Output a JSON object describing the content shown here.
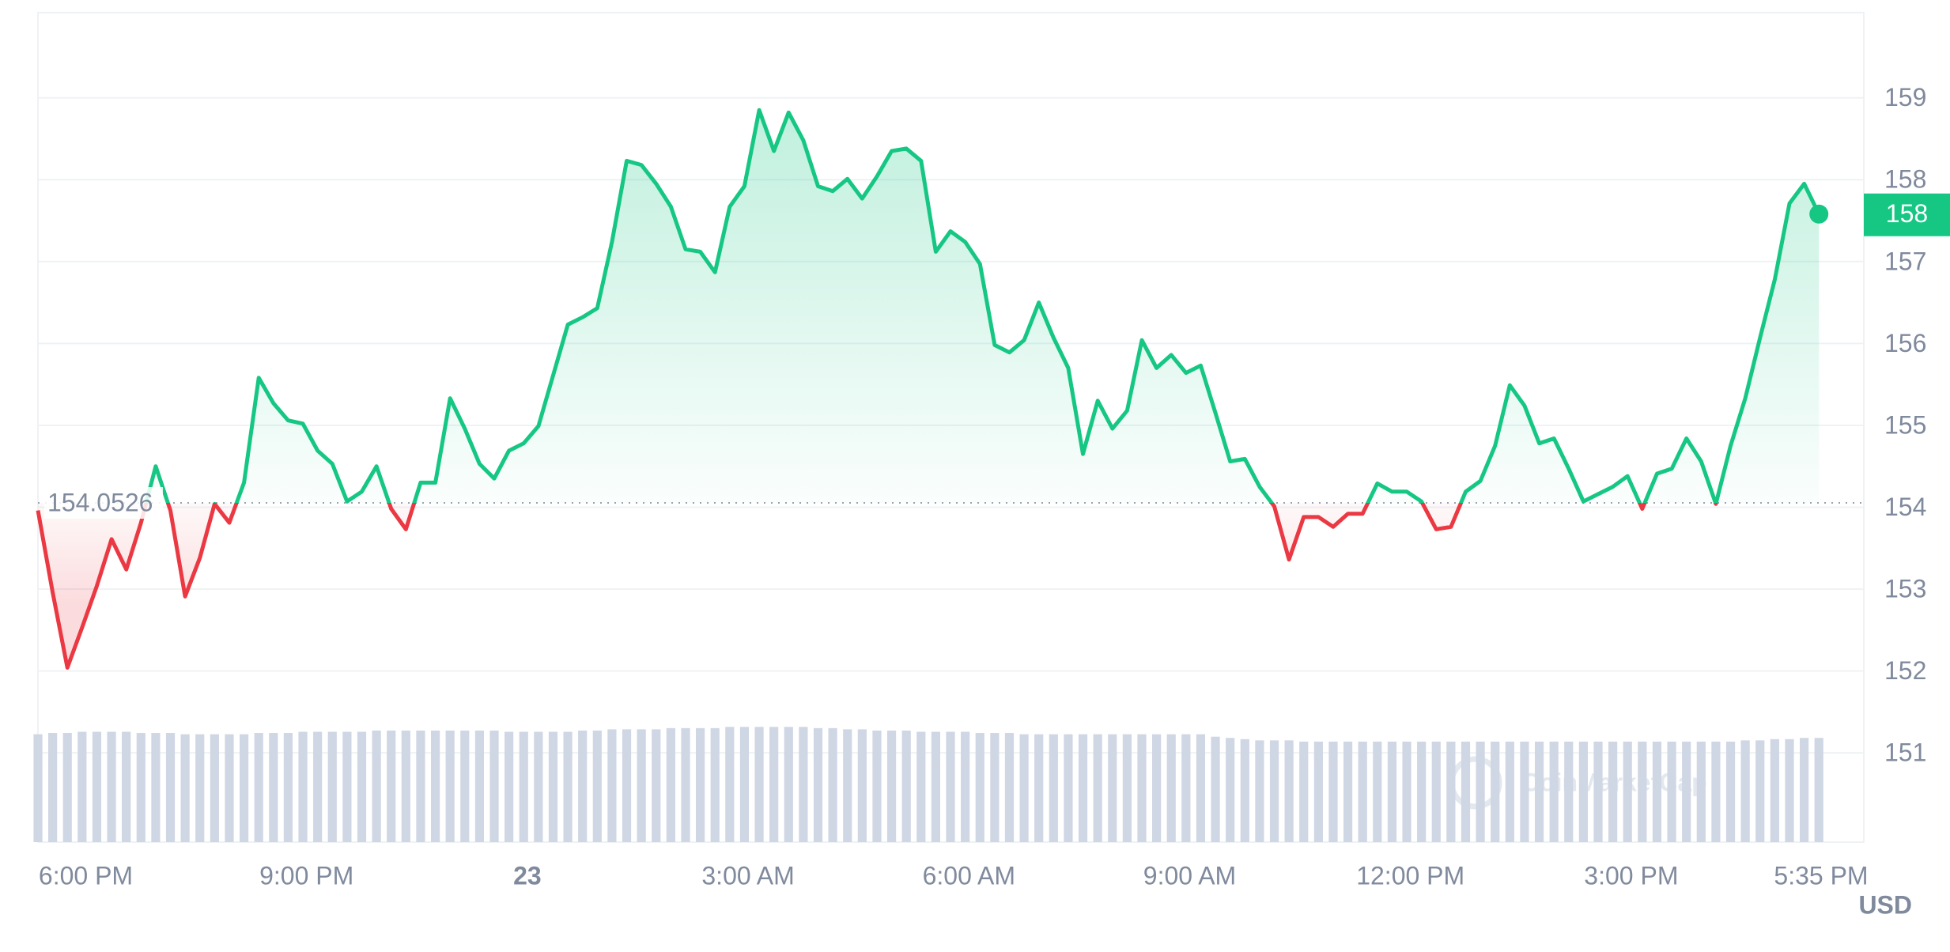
{
  "chart_data": {
    "type": "line",
    "x": [
      17.35,
      17.55,
      17.75,
      17.95,
      18.15,
      18.35,
      18.55,
      18.75,
      18.95,
      19.15,
      19.35,
      19.55,
      19.75,
      19.95,
      20.15,
      20.35,
      20.55,
      20.75,
      20.95,
      21.15,
      21.35,
      21.55,
      21.75,
      21.95,
      22.15,
      22.35,
      22.55,
      22.75,
      22.95,
      23.15,
      23.35,
      23.55,
      23.75,
      23.95,
      24.15,
      24.35,
      24.55,
      24.75,
      24.95,
      25.15,
      25.35,
      25.55,
      25.75,
      25.95,
      26.15,
      26.35,
      26.55,
      26.75,
      26.95,
      27.15,
      27.35,
      27.55,
      27.75,
      27.95,
      28.15,
      28.35,
      28.55,
      28.75,
      28.95,
      29.15,
      29.35,
      29.55,
      29.75,
      29.95,
      30.15,
      30.35,
      30.55,
      30.75,
      30.95,
      31.15,
      31.35,
      31.55,
      31.75,
      31.95,
      32.15,
      32.35,
      32.55,
      32.75,
      32.95,
      33.15,
      33.35,
      33.55,
      33.75,
      33.95,
      34.15,
      34.35,
      34.55,
      34.75,
      34.95,
      35.15,
      35.35,
      35.55,
      35.75,
      35.95,
      36.15,
      36.35,
      36.55,
      36.75,
      36.95,
      37.15,
      37.35,
      37.55,
      37.75,
      37.95,
      38.15,
      38.35,
      38.55,
      38.75,
      38.95,
      39.15,
      39.35,
      39.55,
      39.75,
      39.95,
      40.15,
      40.35,
      40.55,
      40.75,
      40.95,
      41.15,
      41.35,
      41.55
    ],
    "values": [
      153.96,
      152.96,
      152.04,
      152.53,
      153.04,
      153.61,
      153.24,
      153.81,
      154.5,
      153.96,
      152.91,
      153.38,
      154.04,
      153.81,
      154.3,
      155.58,
      155.27,
      155.06,
      155.02,
      154.69,
      154.53,
      154.07,
      154.19,
      154.5,
      153.98,
      153.73,
      154.3,
      154.3,
      155.33,
      154.96,
      154.53,
      154.35,
      154.69,
      154.78,
      154.99,
      155.61,
      156.23,
      156.32,
      156.43,
      157.24,
      158.23,
      158.18,
      157.95,
      157.67,
      157.15,
      157.12,
      156.87,
      157.67,
      157.92,
      158.85,
      158.35,
      158.82,
      158.48,
      157.92,
      157.86,
      158.01,
      157.77,
      158.04,
      158.35,
      158.38,
      158.23,
      157.12,
      157.37,
      157.24,
      156.97,
      155.98,
      155.89,
      156.04,
      156.5,
      156.07,
      155.7,
      154.65,
      155.3,
      154.96,
      155.18,
      156.04,
      155.7,
      155.86,
      155.64,
      155.73,
      155.15,
      154.56,
      154.59,
      154.25,
      154.01,
      153.36,
      153.88,
      153.88,
      153.76,
      153.92,
      153.92,
      154.29,
      154.19,
      154.19,
      154.07,
      153.73,
      153.76,
      154.19,
      154.32,
      154.75,
      155.49,
      155.24,
      154.78,
      154.84,
      154.47,
      154.07,
      154.16,
      154.25,
      154.38,
      153.98,
      154.41,
      154.47,
      154.84,
      154.56,
      154.04,
      154.75,
      155.33,
      156.07,
      156.78,
      157.71,
      157.95,
      157.58
    ],
    "volume": [
      88,
      89,
      89,
      90,
      90,
      90,
      90,
      89,
      89,
      89,
      88,
      88,
      88,
      88,
      88,
      89,
      89,
      89,
      90,
      90,
      90,
      90,
      90,
      91,
      91,
      91,
      91,
      91,
      91,
      91,
      91,
      91,
      90,
      90,
      90,
      90,
      90,
      91,
      91,
      92,
      92,
      92,
      92,
      93,
      93,
      93,
      93,
      94,
      94,
      94,
      94,
      94,
      94,
      93,
      93,
      92,
      92,
      91,
      91,
      91,
      90,
      90,
      90,
      90,
      89,
      89,
      89,
      88,
      88,
      88,
      88,
      88,
      88,
      88,
      88,
      88,
      88,
      88,
      88,
      88,
      86,
      85,
      84,
      83,
      83,
      83,
      82,
      82,
      82,
      82,
      82,
      82,
      82,
      82,
      82,
      82,
      82,
      82,
      82,
      82,
      82,
      82,
      82,
      82,
      82,
      82,
      82,
      82,
      82,
      82,
      82,
      82,
      82,
      82,
      82,
      82,
      83,
      83,
      84,
      84,
      85,
      85
    ],
    "up_color": "#16c784",
    "down_color": "#ea3943",
    "volume_color": "#cfd6e4",
    "baseline": 154.0526,
    "price_badge": "158",
    "currency": "USD",
    "watermark": "CoinMarketCap",
    "xlim": [
      17.35,
      41.58
    ],
    "xticks": [
      {
        "value": 18,
        "label": "6:00 PM"
      },
      {
        "value": 21,
        "label": "9:00 PM"
      },
      {
        "value": 24,
        "label": "23",
        "bold": true
      },
      {
        "value": 27,
        "label": "3:00 AM"
      },
      {
        "value": 30,
        "label": "6:00 AM"
      },
      {
        "value": 33,
        "label": "9:00 AM"
      },
      {
        "value": 36,
        "label": "12:00 PM"
      },
      {
        "value": 39,
        "label": "3:00 PM"
      },
      {
        "value": 41.58,
        "label": "5:35 PM"
      }
    ],
    "ylim": [
      149.91,
      160.04
    ],
    "yticks": [
      151,
      152,
      153,
      154,
      155,
      156,
      157,
      158,
      159
    ],
    "grid": true
  }
}
